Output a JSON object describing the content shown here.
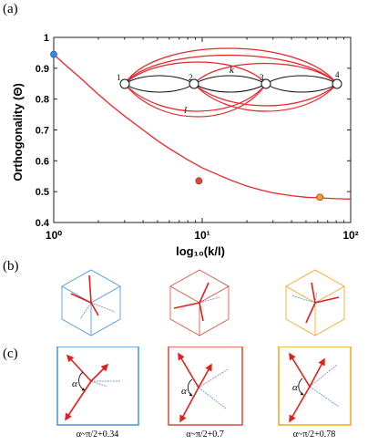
{
  "panels": {
    "a": "(a)",
    "b": "(b)",
    "c": "(c)"
  },
  "chart_data": {
    "type": "line",
    "xscale": "log",
    "xlim": [
      1,
      100
    ],
    "ylim": [
      0.4,
      1.0
    ],
    "xlabel": "log₁₀(k/l)",
    "ylabel": "Orthogonality (Θ)",
    "xticks": [
      1,
      10,
      100
    ],
    "xtick_labels": [
      "10⁰",
      "10¹",
      "10²"
    ],
    "yticks": [
      0.4,
      0.5,
      0.6,
      0.7,
      0.8,
      0.9,
      1.0
    ],
    "ytick_labels": [
      "0.4",
      "0.5",
      "0.6",
      "0.7",
      "0.8",
      "0.9",
      "1"
    ],
    "series": [
      {
        "color": "#e8272a",
        "x": [
          1,
          1.2,
          1.5,
          2,
          2.5,
          3,
          4,
          5,
          6,
          8,
          10,
          13,
          16,
          20,
          25,
          30,
          40,
          50,
          60,
          80,
          100
        ],
        "y": [
          0.945,
          0.91,
          0.87,
          0.815,
          0.775,
          0.745,
          0.7,
          0.665,
          0.64,
          0.603,
          0.577,
          0.553,
          0.535,
          0.518,
          0.505,
          0.496,
          0.487,
          0.482,
          0.48,
          0.477,
          0.476
        ]
      }
    ],
    "markers": [
      {
        "x": 1,
        "y": 0.945,
        "color": "#3d86d9"
      },
      {
        "x": 9.5,
        "y": 0.535,
        "color": "#d94a3a"
      },
      {
        "x": 62,
        "y": 0.482,
        "color": "#f2a51c"
      }
    ],
    "inset": {
      "nodes": [
        "1",
        "2",
        "3",
        "4"
      ],
      "labels": {
        "k": "k",
        "l": "l"
      }
    }
  },
  "captions": [
    "α~π/2+0.34",
    "α~π/2+0.7",
    "α~π/2+0.78"
  ],
  "alpha_label": "α",
  "colors": {
    "blue": "#4a90d9",
    "red": "#d94a3a",
    "orange": "#f2a51c",
    "arrow": "#e0201c",
    "purple": "#a070d0"
  }
}
